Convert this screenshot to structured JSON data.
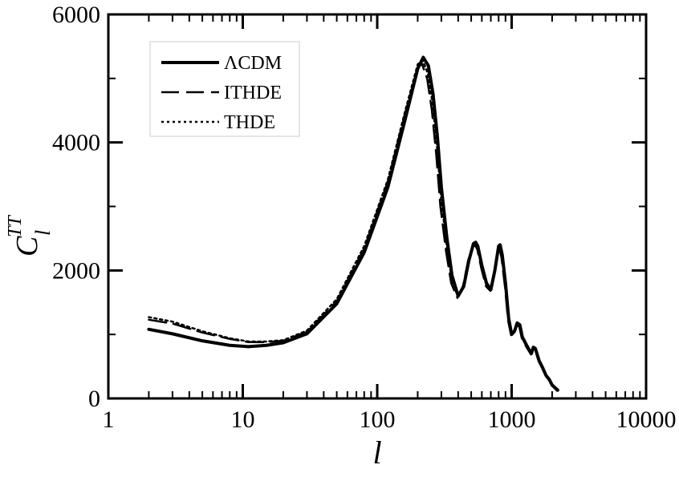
{
  "chart_data": {
    "type": "line",
    "title": "",
    "xlabel": "l",
    "ylabel_main": "C",
    "ylabel_sub": "l",
    "ylabel_sup": "TT",
    "xscale": "log",
    "xlim": [
      1,
      10000
    ],
    "ylim": [
      0,
      6000
    ],
    "x_ticks": [
      1,
      10,
      100,
      1000,
      10000
    ],
    "x_tick_labels": [
      "1",
      "10",
      "100",
      "1000",
      "10000"
    ],
    "y_ticks": [
      0,
      2000,
      4000,
      6000
    ],
    "y_tick_labels": [
      "0",
      "2000",
      "4000",
      "6000"
    ],
    "grid": false,
    "legend_position": "top-left",
    "series": [
      {
        "name": "ΛCDM",
        "style": "solid",
        "color": "#000000",
        "x": [
          2,
          3,
          5,
          8,
          11,
          15,
          20,
          30,
          50,
          80,
          120,
          160,
          200,
          220,
          240,
          260,
          280,
          300,
          330,
          360,
          400,
          440,
          480,
          520,
          540,
          560,
          600,
          650,
          700,
          750,
          800,
          820,
          850,
          900,
          950,
          1000,
          1050,
          1100,
          1150,
          1200,
          1300,
          1400,
          1450,
          1500,
          1600,
          1700,
          1800,
          1900,
          2000,
          2200
        ],
        "y": [
          1080,
          1010,
          900,
          830,
          810,
          830,
          870,
          1010,
          1480,
          2280,
          3300,
          4330,
          5150,
          5330,
          5200,
          4760,
          4100,
          3300,
          2500,
          1920,
          1600,
          1750,
          2150,
          2420,
          2440,
          2380,
          2080,
          1800,
          1700,
          2000,
          2380,
          2400,
          2250,
          1800,
          1250,
          1000,
          1050,
          1180,
          1150,
          960,
          820,
          700,
          800,
          780,
          590,
          480,
          360,
          300,
          210,
          130
        ]
      },
      {
        "name": "ITHDE",
        "style": "dashed",
        "color": "#000000",
        "x": [
          2,
          3,
          5,
          8,
          11,
          15,
          20,
          30,
          50,
          80,
          120,
          160,
          200,
          215,
          235,
          255,
          275,
          295,
          325,
          355,
          395,
          435,
          475,
          515,
          535,
          555,
          595,
          645,
          695,
          740,
          790,
          810,
          840,
          890,
          940,
          990,
          1040,
          1090,
          1140,
          1190,
          1290,
          1390,
          1440,
          1490,
          1590,
          1690,
          1790,
          1890,
          1990,
          2180
        ],
        "y": [
          1230,
          1170,
          1030,
          930,
          880,
          880,
          900,
          1040,
          1520,
          2340,
          3390,
          4430,
          5170,
          5230,
          5000,
          4500,
          3800,
          3000,
          2300,
          1800,
          1570,
          1760,
          2160,
          2380,
          2390,
          2330,
          2030,
          1750,
          1680,
          1960,
          2330,
          2350,
          2200,
          1760,
          1220,
          990,
          1030,
          1150,
          1120,
          940,
          800,
          690,
          780,
          760,
          580,
          470,
          350,
          290,
          200,
          120
        ]
      },
      {
        "name": "THDE",
        "style": "dotted",
        "color": "#000000",
        "x": [
          2,
          3,
          5,
          8,
          11,
          15,
          20,
          30,
          50,
          80,
          120,
          160,
          200,
          218,
          238,
          258,
          278,
          298,
          328,
          358,
          398,
          438,
          478,
          518,
          538,
          558,
          598,
          648,
          698,
          745,
          795,
          815,
          845,
          895,
          945,
          995,
          1045,
          1095,
          1145,
          1195,
          1295,
          1395,
          1445,
          1495,
          1595,
          1695,
          1795,
          1895,
          1995,
          2190
        ],
        "y": [
          1270,
          1200,
          1050,
          940,
          890,
          890,
          910,
          1060,
          1550,
          2380,
          3420,
          4460,
          5220,
          5280,
          5080,
          4620,
          3950,
          3150,
          2400,
          1860,
          1590,
          1760,
          2170,
          2400,
          2410,
          2350,
          2050,
          1770,
          1690,
          1980,
          2350,
          2370,
          2220,
          1780,
          1230,
          995,
          1040,
          1160,
          1130,
          950,
          810,
          695,
          790,
          770,
          585,
          475,
          355,
          295,
          205,
          125
        ]
      }
    ]
  }
}
